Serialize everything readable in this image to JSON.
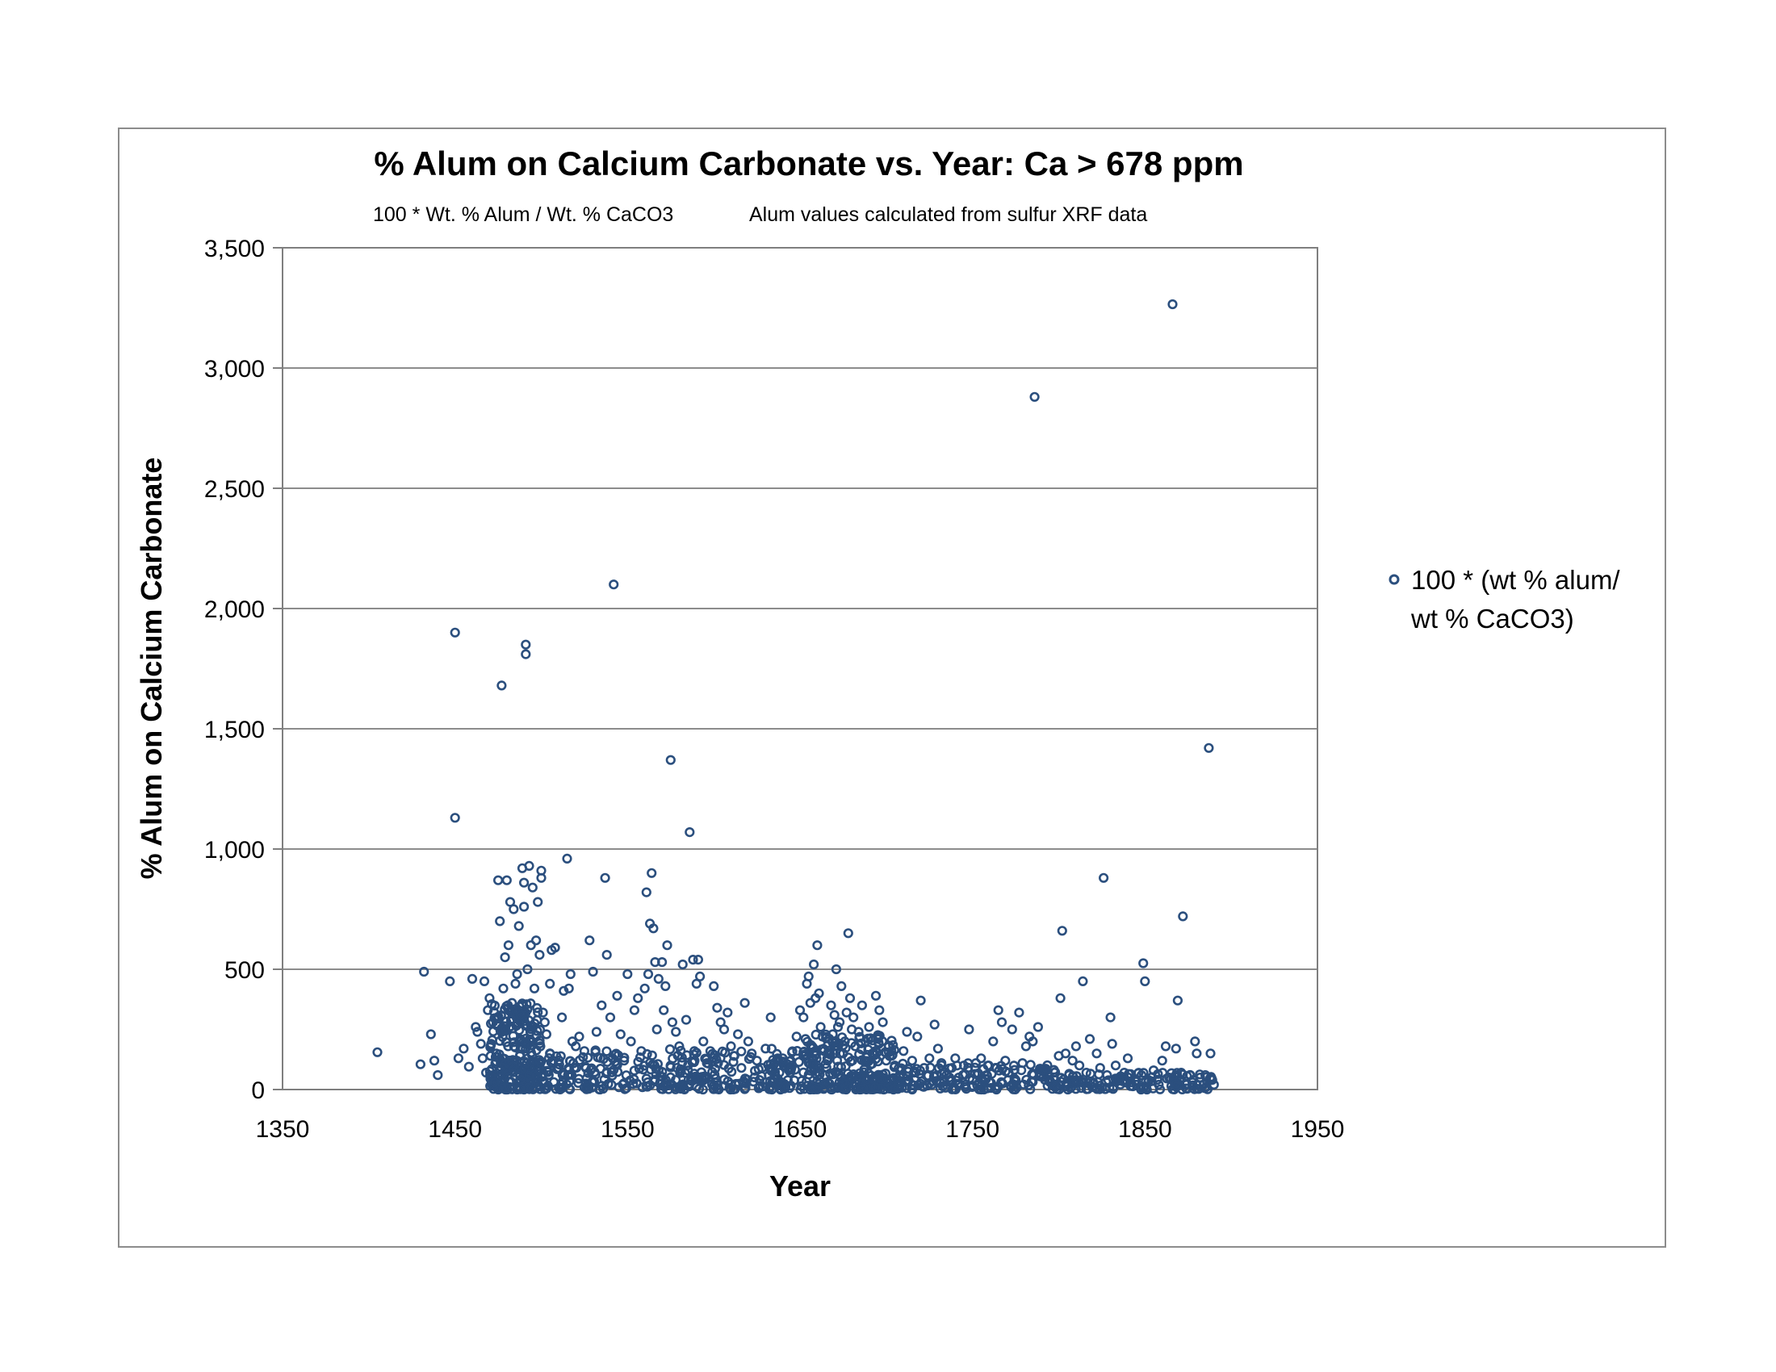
{
  "chart_data": {
    "type": "scatter",
    "title": "%  Alum on Calcium Carbonate vs. Year:  Ca > 678 ppm",
    "subtitle_left": "100 * Wt. % Alum / Wt. % CaCO3",
    "subtitle_right": "Alum values calculated from sulfur XRF data",
    "xlabel": "Year",
    "ylabel": "%  Alum   on  Calcium Carbonate",
    "xlim": [
      1350,
      1950
    ],
    "ylim": [
      0,
      3500
    ],
    "x_ticks": [
      "1350",
      "1450",
      "1550",
      "1650",
      "1750",
      "1850",
      "1950"
    ],
    "y_ticks": [
      "0",
      "500",
      "1,000",
      "1,500",
      "2,000",
      "2,500",
      "3,000",
      "3,500"
    ],
    "grid": "horizontal",
    "legend_position": "right",
    "marker_color": "#2b4f7e",
    "series": [
      {
        "name": "100 * (wt % alum/ wt % CaCO3)",
        "legend_lines": [
          "100 * (wt % alum/",
          "wt % CaCO3)"
        ],
        "points": [
          [
            1405,
            155
          ],
          [
            1430,
            105
          ],
          [
            1432,
            490
          ],
          [
            1436,
            230
          ],
          [
            1438,
            120
          ],
          [
            1440,
            60
          ],
          [
            1447,
            450
          ],
          [
            1450,
            1900
          ],
          [
            1450,
            1130
          ],
          [
            1452,
            130
          ],
          [
            1455,
            170
          ],
          [
            1458,
            95
          ],
          [
            1460,
            460
          ],
          [
            1462,
            260
          ],
          [
            1463,
            240
          ],
          [
            1465,
            190
          ],
          [
            1466,
            130
          ],
          [
            1467,
            450
          ],
          [
            1468,
            70
          ],
          [
            1469,
            330
          ],
          [
            1470,
            380
          ],
          [
            1471,
            55
          ],
          [
            1472,
            280
          ],
          [
            1473,
            30
          ],
          [
            1474,
            150
          ],
          [
            1475,
            870
          ],
          [
            1476,
            700
          ],
          [
            1477,
            1680
          ],
          [
            1478,
            420
          ],
          [
            1479,
            550
          ],
          [
            1480,
            870
          ],
          [
            1481,
            600
          ],
          [
            1482,
            780
          ],
          [
            1483,
            360
          ],
          [
            1484,
            750
          ],
          [
            1485,
            440
          ],
          [
            1486,
            480
          ],
          [
            1487,
            680
          ],
          [
            1488,
            310
          ],
          [
            1489,
            920
          ],
          [
            1490,
            760
          ],
          [
            1490,
            860
          ],
          [
            1491,
            1810
          ],
          [
            1491,
            1850
          ],
          [
            1492,
            500
          ],
          [
            1493,
            930
          ],
          [
            1494,
            600
          ],
          [
            1495,
            840
          ],
          [
            1496,
            420
          ],
          [
            1497,
            620
          ],
          [
            1498,
            780
          ],
          [
            1499,
            560
          ],
          [
            1500,
            880
          ],
          [
            1500,
            910
          ],
          [
            1501,
            320
          ],
          [
            1502,
            280
          ],
          [
            1503,
            230
          ],
          [
            1505,
            440
          ],
          [
            1506,
            580
          ],
          [
            1507,
            120
          ],
          [
            1508,
            590
          ],
          [
            1510,
            90
          ],
          [
            1512,
            300
          ],
          [
            1513,
            410
          ],
          [
            1515,
            960
          ],
          [
            1516,
            420
          ],
          [
            1517,
            480
          ],
          [
            1518,
            200
          ],
          [
            1520,
            180
          ],
          [
            1522,
            220
          ],
          [
            1525,
            160
          ],
          [
            1528,
            620
          ],
          [
            1530,
            490
          ],
          [
            1532,
            240
          ],
          [
            1535,
            350
          ],
          [
            1537,
            880
          ],
          [
            1538,
            560
          ],
          [
            1540,
            300
          ],
          [
            1542,
            2100
          ],
          [
            1544,
            390
          ],
          [
            1546,
            230
          ],
          [
            1548,
            120
          ],
          [
            1550,
            480
          ],
          [
            1552,
            200
          ],
          [
            1554,
            330
          ],
          [
            1556,
            380
          ],
          [
            1558,
            160
          ],
          [
            1560,
            420
          ],
          [
            1561,
            820
          ],
          [
            1562,
            480
          ],
          [
            1563,
            690
          ],
          [
            1564,
            900
          ],
          [
            1565,
            670
          ],
          [
            1566,
            530
          ],
          [
            1567,
            250
          ],
          [
            1568,
            460
          ],
          [
            1570,
            530
          ],
          [
            1571,
            330
          ],
          [
            1572,
            430
          ],
          [
            1573,
            600
          ],
          [
            1575,
            1370
          ],
          [
            1576,
            280
          ],
          [
            1578,
            240
          ],
          [
            1580,
            180
          ],
          [
            1582,
            520
          ],
          [
            1584,
            290
          ],
          [
            1586,
            1070
          ],
          [
            1588,
            540
          ],
          [
            1590,
            440
          ],
          [
            1591,
            540
          ],
          [
            1592,
            470
          ],
          [
            1594,
            200
          ],
          [
            1596,
            110
          ],
          [
            1598,
            160
          ],
          [
            1600,
            430
          ],
          [
            1602,
            340
          ],
          [
            1604,
            280
          ],
          [
            1606,
            250
          ],
          [
            1608,
            320
          ],
          [
            1610,
            180
          ],
          [
            1612,
            140
          ],
          [
            1614,
            230
          ],
          [
            1616,
            90
          ],
          [
            1618,
            360
          ],
          [
            1620,
            200
          ],
          [
            1622,
            150
          ],
          [
            1625,
            120
          ],
          [
            1628,
            90
          ],
          [
            1630,
            170
          ],
          [
            1633,
            300
          ],
          [
            1635,
            110
          ],
          [
            1638,
            70
          ],
          [
            1640,
            130
          ],
          [
            1645,
            90
          ],
          [
            1648,
            220
          ],
          [
            1650,
            330
          ],
          [
            1652,
            300
          ],
          [
            1654,
            440
          ],
          [
            1655,
            470
          ],
          [
            1656,
            360
          ],
          [
            1657,
            180
          ],
          [
            1658,
            520
          ],
          [
            1659,
            380
          ],
          [
            1660,
            600
          ],
          [
            1661,
            400
          ],
          [
            1662,
            260
          ],
          [
            1663,
            220
          ],
          [
            1664,
            160
          ],
          [
            1666,
            120
          ],
          [
            1668,
            350
          ],
          [
            1669,
            230
          ],
          [
            1670,
            310
          ],
          [
            1671,
            500
          ],
          [
            1672,
            260
          ],
          [
            1673,
            280
          ],
          [
            1674,
            430
          ],
          [
            1675,
            150
          ],
          [
            1676,
            200
          ],
          [
            1677,
            320
          ],
          [
            1678,
            650
          ],
          [
            1679,
            380
          ],
          [
            1680,
            250
          ],
          [
            1681,
            300
          ],
          [
            1682,
            180
          ],
          [
            1684,
            240
          ],
          [
            1686,
            350
          ],
          [
            1688,
            200
          ],
          [
            1690,
            260
          ],
          [
            1692,
            150
          ],
          [
            1694,
            390
          ],
          [
            1696,
            330
          ],
          [
            1698,
            280
          ],
          [
            1700,
            120
          ],
          [
            1703,
            160
          ],
          [
            1705,
            100
          ],
          [
            1708,
            80
          ],
          [
            1710,
            160
          ],
          [
            1712,
            240
          ],
          [
            1715,
            120
          ],
          [
            1718,
            220
          ],
          [
            1720,
            370
          ],
          [
            1722,
            90
          ],
          [
            1725,
            130
          ],
          [
            1728,
            270
          ],
          [
            1730,
            170
          ],
          [
            1732,
            110
          ],
          [
            1735,
            60
          ],
          [
            1738,
            90
          ],
          [
            1740,
            130
          ],
          [
            1742,
            50
          ],
          [
            1745,
            100
          ],
          [
            1748,
            250
          ],
          [
            1750,
            40
          ],
          [
            1752,
            110
          ],
          [
            1755,
            130
          ],
          [
            1758,
            60
          ],
          [
            1760,
            30
          ],
          [
            1762,
            200
          ],
          [
            1764,
            90
          ],
          [
            1765,
            330
          ],
          [
            1767,
            280
          ],
          [
            1769,
            120
          ],
          [
            1771,
            70
          ],
          [
            1773,
            250
          ],
          [
            1775,
            40
          ],
          [
            1777,
            320
          ],
          [
            1779,
            110
          ],
          [
            1781,
            180
          ],
          [
            1783,
            220
          ],
          [
            1785,
            200
          ],
          [
            1786,
            2880
          ],
          [
            1788,
            260
          ],
          [
            1790,
            80
          ],
          [
            1792,
            40
          ],
          [
            1795,
            30
          ],
          [
            1797,
            20
          ],
          [
            1800,
            140
          ],
          [
            1801,
            380
          ],
          [
            1802,
            660
          ],
          [
            1804,
            150
          ],
          [
            1806,
            60
          ],
          [
            1808,
            120
          ],
          [
            1810,
            180
          ],
          [
            1812,
            100
          ],
          [
            1814,
            450
          ],
          [
            1816,
            70
          ],
          [
            1818,
            210
          ],
          [
            1820,
            30
          ],
          [
            1822,
            150
          ],
          [
            1824,
            90
          ],
          [
            1826,
            880
          ],
          [
            1828,
            60
          ],
          [
            1830,
            300
          ],
          [
            1831,
            190
          ],
          [
            1833,
            100
          ],
          [
            1835,
            40
          ],
          [
            1838,
            70
          ],
          [
            1840,
            130
          ],
          [
            1842,
            30
          ],
          [
            1845,
            20
          ],
          [
            1848,
            60
          ],
          [
            1849,
            525
          ],
          [
            1850,
            450
          ],
          [
            1852,
            40
          ],
          [
            1855,
            80
          ],
          [
            1858,
            20
          ],
          [
            1860,
            120
          ],
          [
            1862,
            180
          ],
          [
            1864,
            50
          ],
          [
            1866,
            3265
          ],
          [
            1867,
            30
          ],
          [
            1868,
            170
          ],
          [
            1869,
            370
          ],
          [
            1870,
            40
          ],
          [
            1871,
            70
          ],
          [
            1872,
            720
          ],
          [
            1874,
            20
          ],
          [
            1876,
            60
          ],
          [
            1878,
            40
          ],
          [
            1879,
            200
          ],
          [
            1880,
            150
          ],
          [
            1882,
            50
          ],
          [
            1884,
            20
          ],
          [
            1885,
            60
          ],
          [
            1886,
            30
          ],
          [
            1887,
            1420
          ],
          [
            1888,
            150
          ],
          [
            1889,
            40
          ],
          [
            1890,
            20
          ]
        ],
        "dense_clusters": [
          {
            "x_range": [
              1470,
              1500
            ],
            "y_range": [
              0,
              360
            ],
            "count": 260
          },
          {
            "x_range": [
              1500,
              1650
            ],
            "y_range": [
              0,
              170
            ],
            "count": 330
          },
          {
            "x_range": [
              1650,
              1705
            ],
            "y_range": [
              0,
              230
            ],
            "count": 240
          },
          {
            "x_range": [
              1705,
              1800
            ],
            "y_range": [
              0,
              110
            ],
            "count": 160
          },
          {
            "x_range": [
              1800,
              1890
            ],
            "y_range": [
              0,
              70
            ],
            "count": 120
          }
        ]
      }
    ]
  }
}
